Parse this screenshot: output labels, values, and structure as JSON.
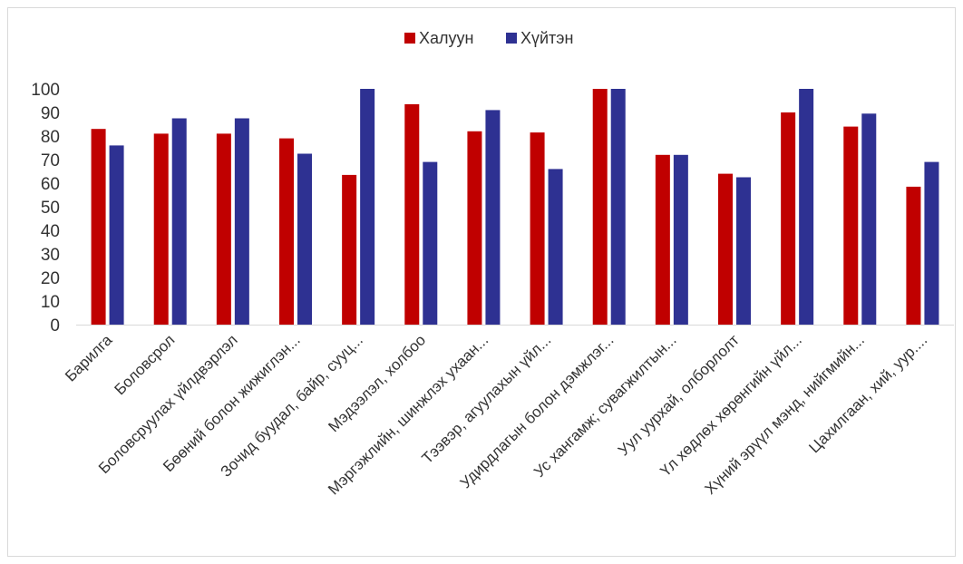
{
  "chart_data": {
    "type": "bar",
    "categories": [
      "Барилга",
      "Боловсрол",
      "Боловсруулах үйлдвэрлэл",
      "Бөөний болон жижиглэн...",
      "Зочид буудал, байр, сууц...",
      "Мэдээлэл, холбоо",
      "Мэргэжлийн, шинжлэх ухаан...",
      "Тээвэр, агуулахын үйл...",
      "Удирдлагын болон дэмжлэг...",
      "Ус хангамж; сувагжилтын...",
      "Уул уурхай, олборлолт",
      "Үл хөдлөх хөрөнгийн үйл...",
      "Хүний эрүүл мэнд, нийгмийн...",
      "Цахилгаан, хий, уур...."
    ],
    "series": [
      {
        "name": "Халуун",
        "color": "#c00000",
        "values": [
          83,
          81,
          81,
          79,
          63.5,
          93.5,
          82,
          81.5,
          100,
          72,
          64,
          90,
          84,
          58.5
        ]
      },
      {
        "name": "Хүйтэн",
        "color": "#2e3192",
        "values": [
          76,
          87.5,
          87.5,
          72.5,
          100,
          69,
          91,
          66,
          100,
          72,
          62.5,
          100,
          89.5,
          69
        ]
      }
    ],
    "ylim": [
      0,
      100
    ],
    "yticks": [
      0,
      10,
      20,
      30,
      40,
      50,
      60,
      70,
      80,
      90,
      100
    ],
    "grid": false,
    "legend_position": "top-center",
    "title": "",
    "xlabel": "",
    "ylabel": ""
  }
}
